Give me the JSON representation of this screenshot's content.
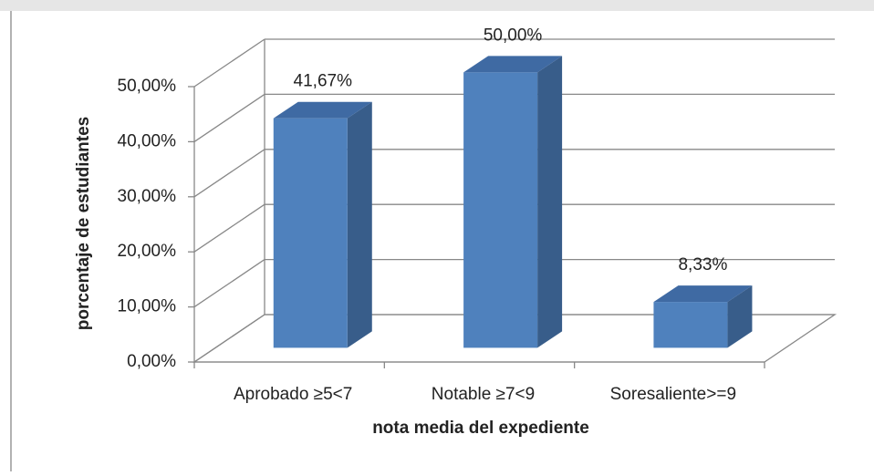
{
  "chart_data": {
    "type": "bar3d",
    "x_label": "nota media del expediente",
    "y_label": "porcentaje  de estudiantes",
    "categories": [
      "Aprobado ≥5<7",
      "Notable ≥7<9",
      "Soresaliente>=9"
    ],
    "values": [
      41.67,
      50,
      8.33
    ],
    "value_labels": [
      "41,67%",
      "50,00%",
      "8,33%"
    ],
    "color": "#4f81bd",
    "ylim": [
      0,
      50
    ],
    "yticks": [
      {
        "value": 0,
        "label": "0,00%"
      },
      {
        "value": 10,
        "label": "10,00%"
      },
      {
        "value": 20,
        "label": "20,00%"
      },
      {
        "value": 30,
        "label": "30,00%"
      },
      {
        "value": 40,
        "label": "40,00%"
      },
      {
        "value": 50,
        "label": "50,00%"
      }
    ],
    "grid": true
  }
}
